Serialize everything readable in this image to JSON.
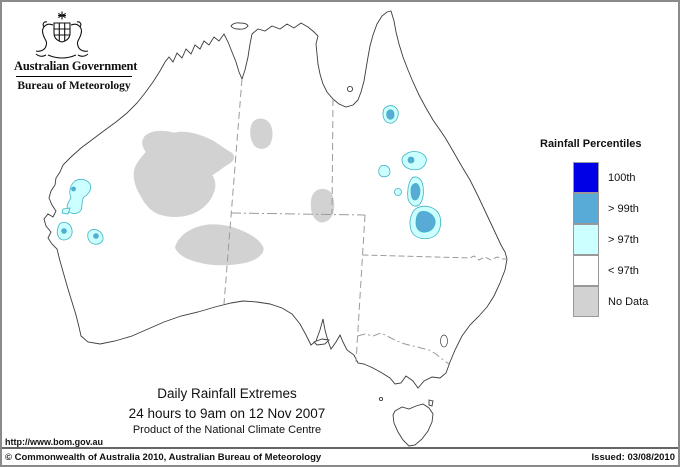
{
  "header": {
    "gov_label": "Australian Government",
    "bureau_label": "Bureau of Meteorology"
  },
  "legend": {
    "title": "Rainfall Percentiles",
    "items": [
      {
        "key": "p100",
        "label": "100th",
        "color": "#0000E6"
      },
      {
        "key": "p99",
        "label": "> 99th",
        "color": "#58ABD7"
      },
      {
        "key": "p97",
        "label": "> 97th",
        "color": "#CCFFFF"
      },
      {
        "key": "lt97",
        "label": "< 97th",
        "color": "#FFFFFF"
      },
      {
        "key": "nodata",
        "label": "No Data",
        "color": "#D2D2D2"
      }
    ]
  },
  "map_colors": {
    "coast": "#3c3c3c",
    "stateborder": "#9b9b9b",
    "patchline": "#3FB2C4"
  },
  "title_block": {
    "line1": "Daily Rainfall Extremes",
    "line2": "24 hours to 9am on 12 Nov 2007",
    "line3": "Product of the National Climate Centre"
  },
  "footer": {
    "url": "http://www.bom.gov.au",
    "copyright": "© Commonwealth of Australia 2010, Australian Bureau of Meteorology",
    "issued": "Issued: 03/08/2010"
  }
}
